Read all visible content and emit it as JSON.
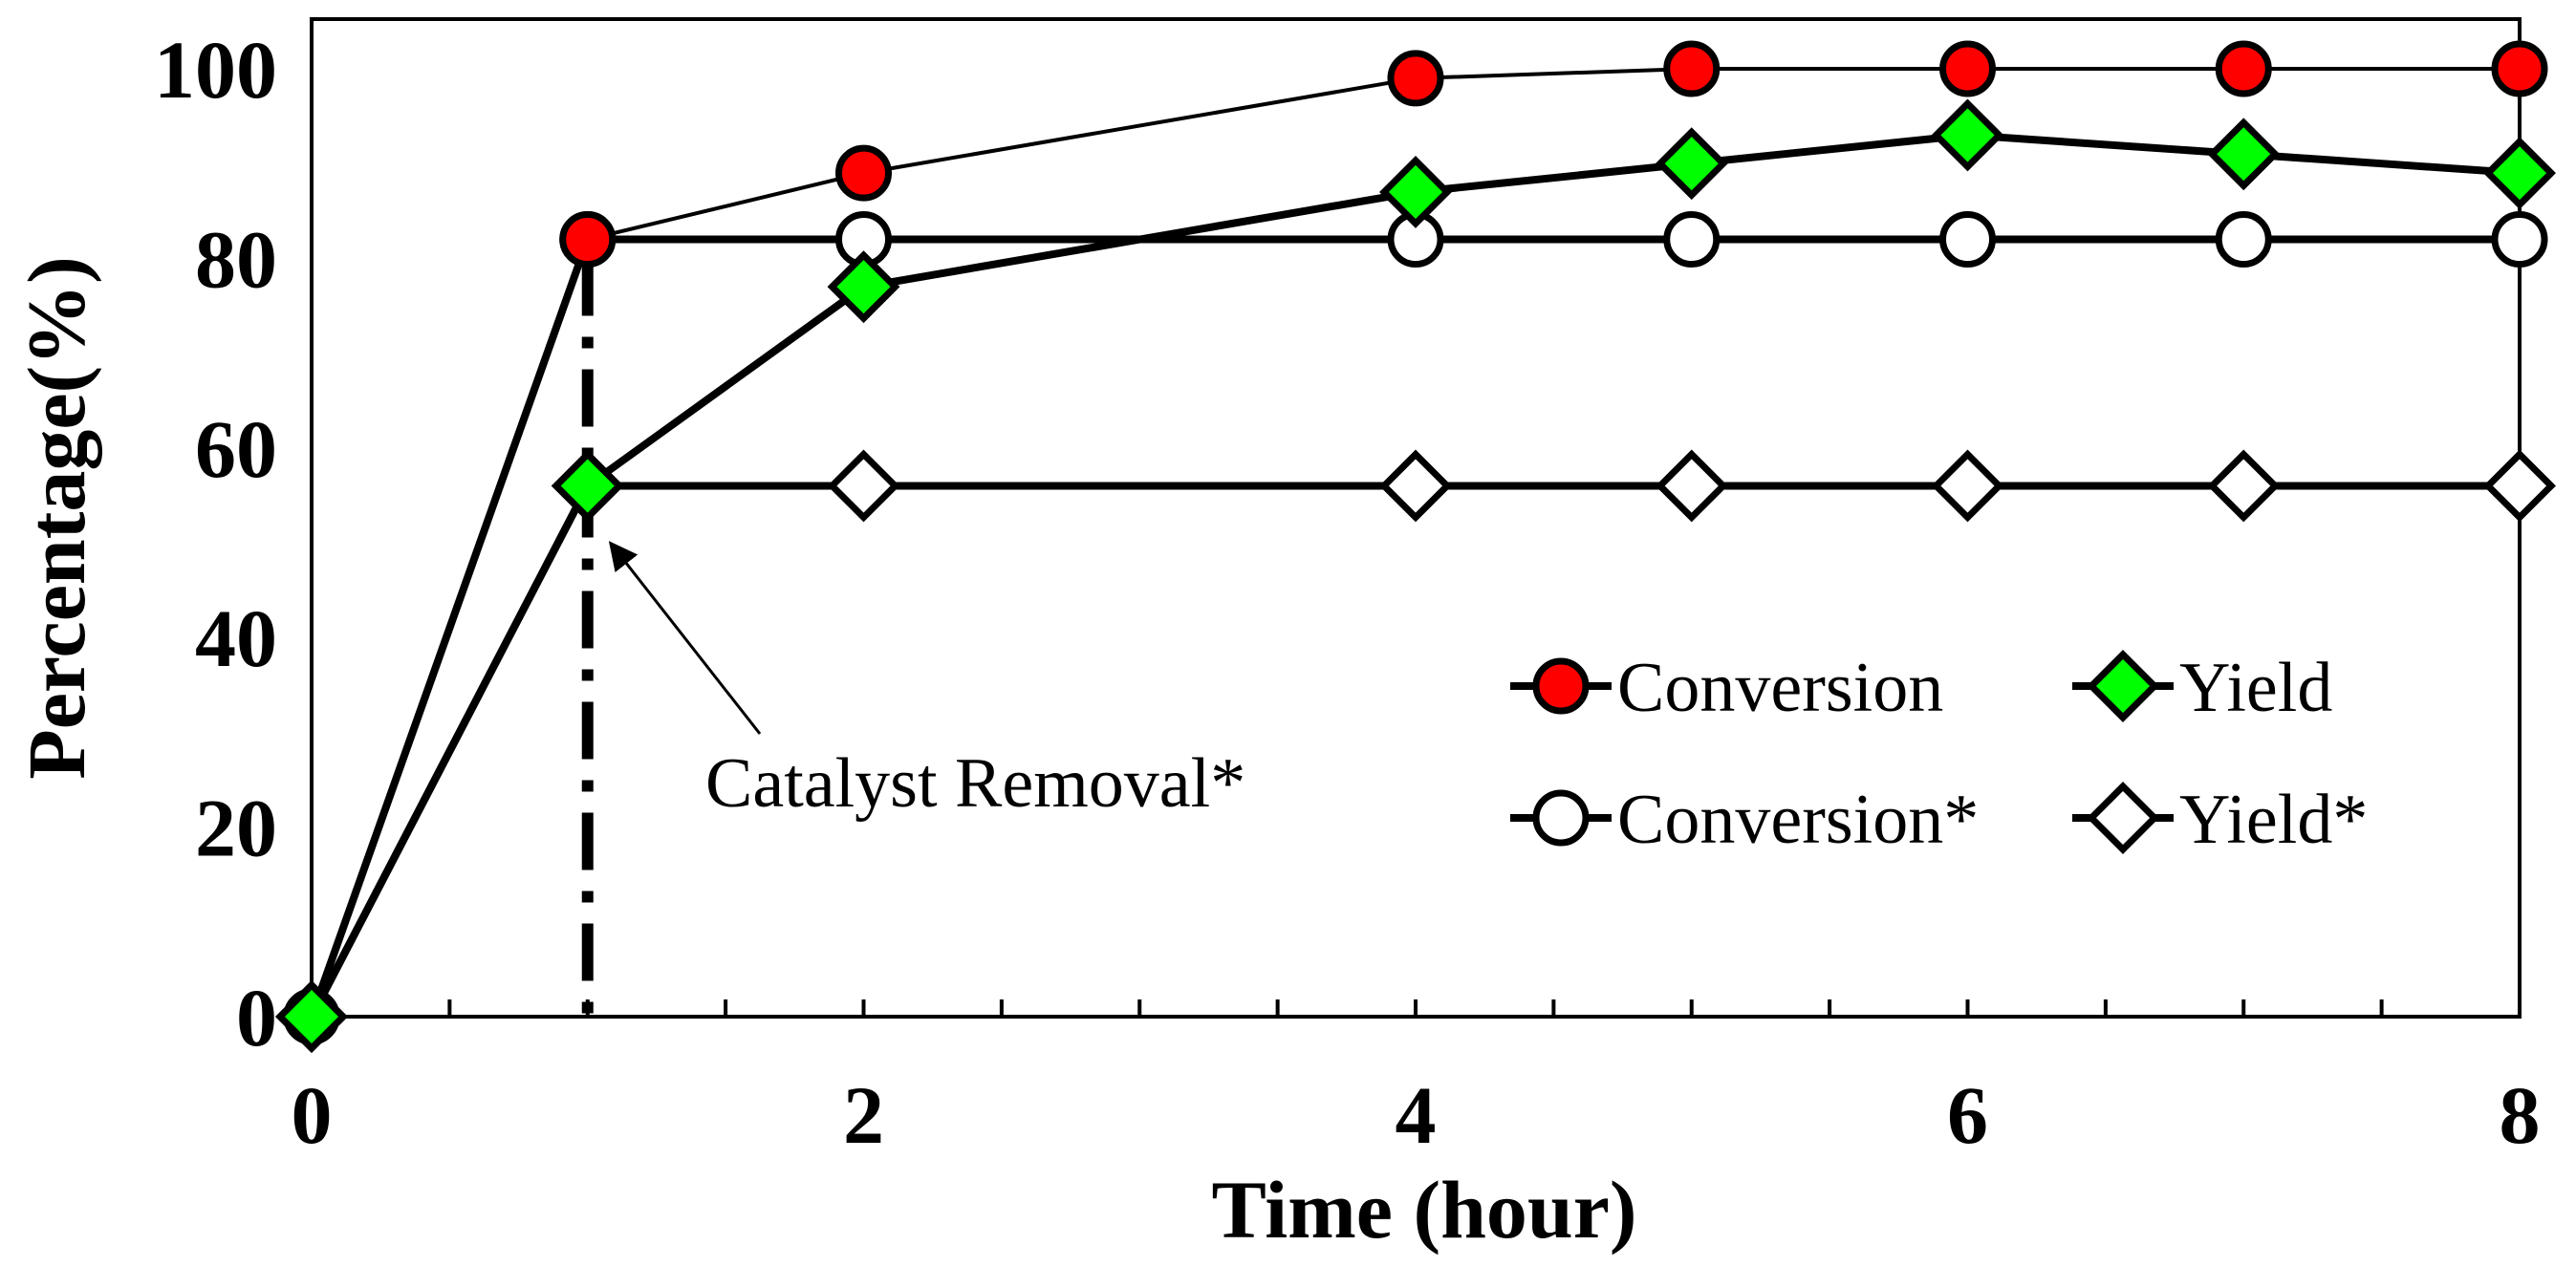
{
  "chart_data": {
    "type": "line",
    "title": "",
    "xlabel": "Time (hour)",
    "ylabel": "Percentage(%)",
    "xlim": [
      0,
      8
    ],
    "ylim": [
      0,
      100
    ],
    "xticks": [
      0,
      2,
      4,
      6,
      8
    ],
    "yticks": [
      0,
      20,
      40,
      60,
      80,
      100
    ],
    "grid": false,
    "legend_position": "bottom-right",
    "series": [
      {
        "name": "Conversion",
        "marker": "circle",
        "fill": "#ff0000",
        "line_weight": "thin",
        "x": [
          0,
          1,
          2,
          4,
          5,
          6,
          7,
          8
        ],
        "y": [
          0,
          82,
          89,
          99,
          100,
          100,
          100,
          100
        ]
      },
      {
        "name": "Yield",
        "marker": "diamond",
        "fill": "#00ff00",
        "line_weight": "thick",
        "x": [
          0,
          1,
          2,
          4,
          5,
          6,
          7,
          8
        ],
        "y": [
          0,
          56,
          77,
          87,
          90,
          93,
          91,
          89
        ]
      },
      {
        "name": "Conversion*",
        "marker": "circle",
        "fill": "#ffffff",
        "line_weight": "thick",
        "x": [
          0,
          1,
          2,
          4,
          5,
          6,
          7,
          8
        ],
        "y": [
          0,
          82,
          82,
          82,
          82,
          82,
          82,
          82
        ]
      },
      {
        "name": "Yield*",
        "marker": "diamond",
        "fill": "#ffffff",
        "line_weight": "thick",
        "x": [
          0,
          1,
          2,
          4,
          5,
          6,
          7,
          8
        ],
        "y": [
          0,
          56,
          56,
          56,
          56,
          56,
          56,
          56
        ]
      }
    ],
    "annotations": [
      {
        "text": "Catalyst Removal*",
        "x": 1,
        "y": 56,
        "vertical_marker_x": 1
      }
    ]
  }
}
